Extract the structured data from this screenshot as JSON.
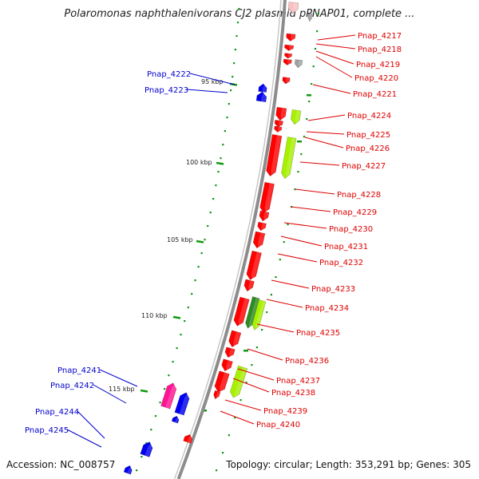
{
  "header": {
    "title": "Polaromonas naphthalenivorans CJ2 plasmid pPNAP01, complete ..."
  },
  "footer": {
    "accession": "Accession: NC_008757",
    "topology": "Topology: circular; Length: 353,291 bp; Genes: 305"
  },
  "map": {
    "scale_labels": [
      "95 kbp",
      "100 kbp",
      "105 kbp",
      "110 kbp",
      "115 kbp"
    ],
    "colors": {
      "backbone": "#8c8c8c",
      "forward_label": "#dd0000",
      "reverse_label": "#0000cc",
      "gene_red": "#ff0000",
      "gene_lime": "#a6f000",
      "gene_green": "#2e8b22",
      "gene_blue": "#0000ee",
      "gene_magenta": "#ff1493",
      "gene_grey": "#a0a0a0",
      "gene_pink": "#f8c0c0",
      "dot_green": "#119911"
    },
    "forward_labels": [
      "Pnap_4217",
      "Pnap_4218",
      "Pnap_4219",
      "Pnap_4220",
      "Pnap_4221",
      "Pnap_4224",
      "Pnap_4225",
      "Pnap_4226",
      "Pnap_4227",
      "Pnap_4228",
      "Pnap_4229",
      "Pnap_4230",
      "Pnap_4231",
      "Pnap_4232",
      "Pnap_4233",
      "Pnap_4234",
      "Pnap_4235",
      "Pnap_4236",
      "Pnap_4237",
      "Pnap_4238",
      "Pnap_4239",
      "Pnap_4240"
    ],
    "reverse_labels": [
      "Pnap_4222",
      "Pnap_4223",
      "Pnap_4241",
      "Pnap_4242",
      "Pnap_4244",
      "Pnap_4245"
    ]
  }
}
